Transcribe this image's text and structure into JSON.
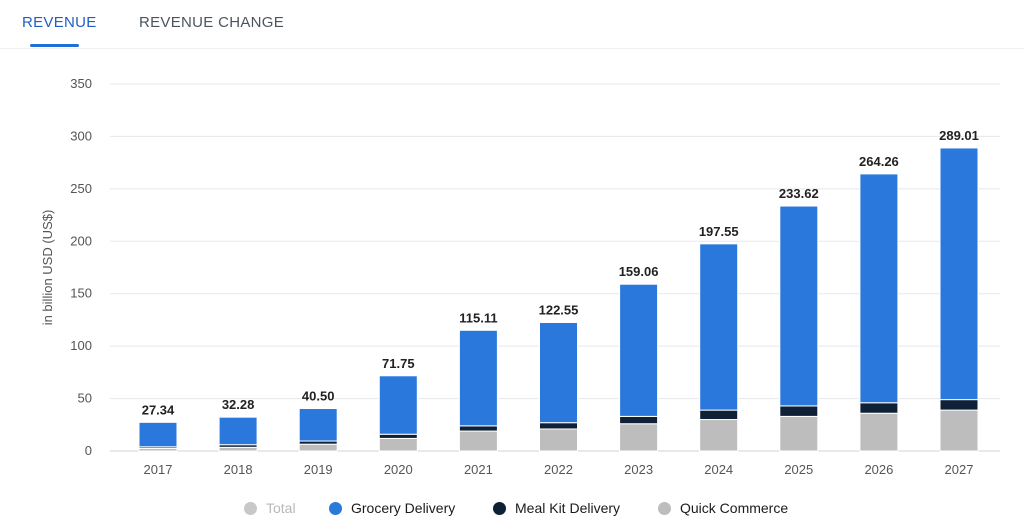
{
  "tabs": [
    {
      "label": "REVENUE",
      "active": true
    },
    {
      "label": "REVENUE CHANGE",
      "active": false
    }
  ],
  "legend": [
    {
      "label": "Total",
      "color": "#c8c8c8",
      "muted": true
    },
    {
      "label": "Grocery Delivery",
      "color": "#2a78dc",
      "muted": false
    },
    {
      "label": "Meal Kit Delivery",
      "color": "#0f2137",
      "muted": false
    },
    {
      "label": "Quick Commerce",
      "color": "#bdbdbd",
      "muted": false
    }
  ],
  "chart_data": {
    "type": "bar",
    "stacked": true,
    "categories": [
      "2017",
      "2018",
      "2019",
      "2020",
      "2021",
      "2022",
      "2023",
      "2024",
      "2025",
      "2026",
      "2027"
    ],
    "ylabel": "in billion USD (US$)",
    "ylim": [
      0,
      350
    ],
    "yticks": [
      0,
      50,
      100,
      150,
      200,
      250,
      300,
      350
    ],
    "grid": true,
    "legend_position": "bottom",
    "totals": [
      "27.34",
      "32.28",
      "40.50",
      "71.75",
      "115.11",
      "122.55",
      "159.06",
      "197.55",
      "233.62",
      "264.26",
      "289.01"
    ],
    "series": [
      {
        "name": "Quick Commerce",
        "color": "#bdbdbd",
        "values": [
          2.5,
          3.5,
          6.5,
          12,
          19,
          21,
          26,
          30,
          33,
          36,
          39
        ]
      },
      {
        "name": "Meal Kit Delivery",
        "color": "#0f2137",
        "values": [
          1.5,
          2.5,
          3,
          4,
          5,
          6,
          7,
          9,
          10,
          10,
          10
        ]
      },
      {
        "name": "Grocery Delivery",
        "color": "#2a78dc",
        "values": [
          23.34,
          26.28,
          31.0,
          55.75,
          91.11,
          95.55,
          126.06,
          158.55,
          190.62,
          218.26,
          240.01
        ]
      }
    ]
  }
}
